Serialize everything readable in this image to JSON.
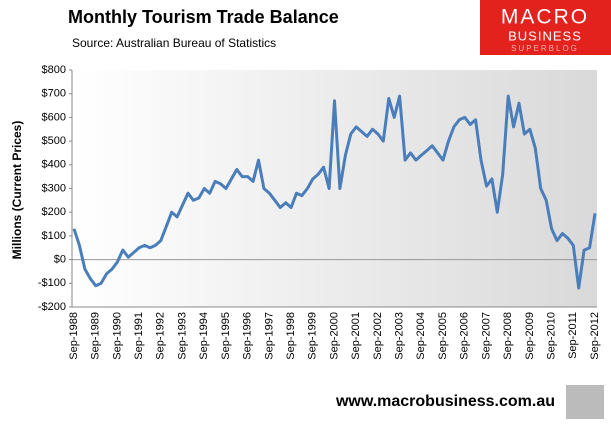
{
  "chart_data": {
    "type": "line",
    "title": "Monthly Tourism Trade Balance",
    "subtitle": "Source:  Australian Bureau of Statistics",
    "y_label": "Millions (Current Prices)",
    "footer": "www.macrobusiness.com.au",
    "logo": {
      "line1": "MACRO",
      "line2": "BUSINESS",
      "line3": "SUPERBLOG"
    },
    "color": "#4a7ebb",
    "categories": [
      "Sep-1988",
      null,
      null,
      null,
      "Sep-1989",
      null,
      null,
      null,
      "Sep-1990",
      null,
      null,
      null,
      "Sep-1991",
      null,
      null,
      null,
      "Sep-1992",
      null,
      null,
      null,
      "Sep-1993",
      null,
      null,
      null,
      "Sep-1994",
      null,
      null,
      null,
      "Sep-1995",
      null,
      null,
      null,
      "Sep-1996",
      null,
      null,
      null,
      "Sep-1997",
      null,
      null,
      null,
      "Sep-1998",
      null,
      null,
      null,
      "Sep-1999",
      null,
      null,
      null,
      "Sep-2000",
      null,
      null,
      null,
      "Sep-2001",
      null,
      null,
      null,
      "Sep-2002",
      null,
      null,
      null,
      "Sep-2003",
      null,
      null,
      null,
      "Sep-2004",
      null,
      null,
      null,
      "Sep-2005",
      null,
      null,
      null,
      "Sep-2006",
      null,
      null,
      null,
      "Sep-2007",
      null,
      null,
      null,
      "Sep-2008",
      null,
      null,
      null,
      "Sep-2009",
      null,
      null,
      null,
      "Sep-2010",
      null,
      null,
      null,
      "Sep-2011",
      null,
      null,
      null,
      "Sep-2012"
    ],
    "values": [
      130,
      60,
      -40,
      -80,
      -110,
      -100,
      -60,
      -40,
      -10,
      40,
      10,
      30,
      50,
      60,
      50,
      60,
      80,
      140,
      200,
      180,
      230,
      280,
      250,
      260,
      300,
      280,
      330,
      320,
      300,
      340,
      380,
      350,
      350,
      330,
      420,
      300,
      280,
      250,
      220,
      240,
      220,
      280,
      270,
      300,
      340,
      360,
      390,
      300,
      670,
      300,
      440,
      530,
      560,
      540,
      520,
      550,
      530,
      500,
      680,
      600,
      690,
      420,
      450,
      420,
      440,
      460,
      480,
      450,
      420,
      500,
      560,
      590,
      600,
      570,
      590,
      420,
      310,
      340,
      200,
      360,
      690,
      560,
      660,
      530,
      550,
      470,
      300,
      250,
      130,
      80,
      110,
      90,
      60,
      -120,
      40,
      50,
      195
    ],
    "ylim": [
      -200,
      800
    ],
    "yticks": [
      {
        "value": -200,
        "label": "-$200"
      },
      {
        "value": -100,
        "label": "-$100"
      },
      {
        "value": 0,
        "label": "$0"
      },
      {
        "value": 100,
        "label": "$100"
      },
      {
        "value": 200,
        "label": "$200"
      },
      {
        "value": 300,
        "label": "$300"
      },
      {
        "value": 400,
        "label": "$400"
      },
      {
        "value": 500,
        "label": "$500"
      },
      {
        "value": 600,
        "label": "$600"
      },
      {
        "value": 700,
        "label": "$700"
      },
      {
        "value": 800,
        "label": "$800"
      }
    ]
  }
}
